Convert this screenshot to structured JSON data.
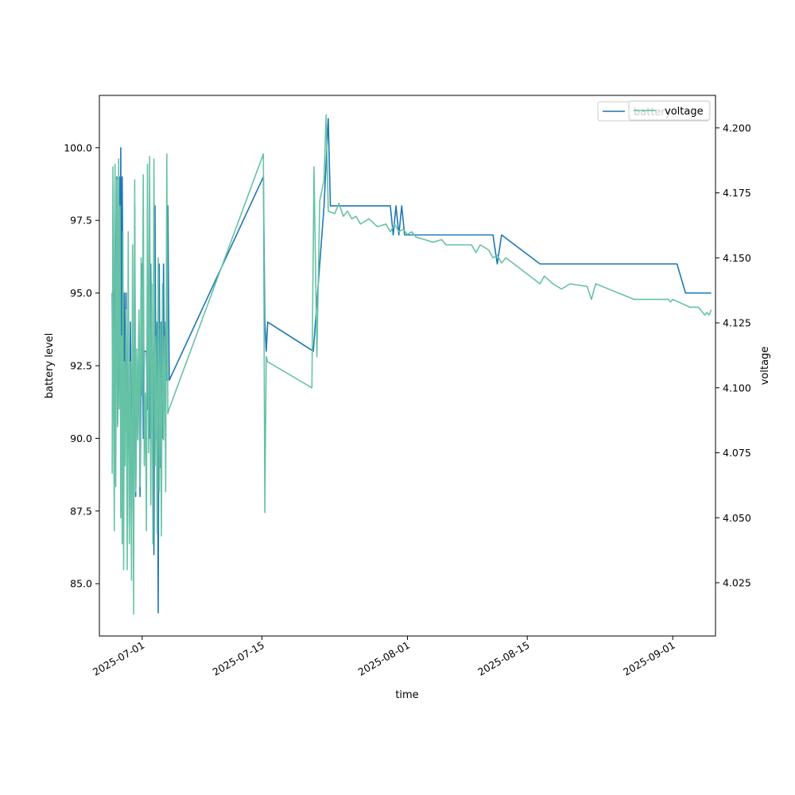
{
  "chart_data": {
    "type": "line",
    "xlabel": "time",
    "ylabel_left": "battery level",
    "ylabel_right": "voltage",
    "xlim": [
      "2025-06-26",
      "2025-09-06"
    ],
    "ylim_left": [
      83.2,
      101.8
    ],
    "ylim_right": [
      4.0045,
      4.2125
    ],
    "x_ticks": [
      "2025-07-01",
      "2025-07-15",
      "2025-08-01",
      "2025-08-15",
      "2025-09-01"
    ],
    "y_ticks_left": [
      "85.0",
      "87.5",
      "90.0",
      "92.5",
      "95.0",
      "97.5",
      "100.0"
    ],
    "y_ticks_right": [
      "4.025",
      "4.050",
      "4.075",
      "4.100",
      "4.125",
      "4.150",
      "4.175",
      "4.200"
    ],
    "grid": false,
    "legend": {
      "placement": "top-right",
      "entries": [
        "battery",
        "voltage"
      ]
    },
    "series": [
      {
        "name": "battery",
        "axis": "left",
        "color": "#1f77b4",
        "points": [
          [
            "2025-06-27 12:00",
            95.0
          ],
          [
            "2025-06-27 14:00",
            91.0
          ],
          [
            "2025-06-27 16:00",
            95.0
          ],
          [
            "2025-06-27 18:00",
            94.0
          ],
          [
            "2025-06-27 20:00",
            99.0
          ],
          [
            "2025-06-27 22:00",
            91.0
          ],
          [
            "2025-06-28 01:00",
            99.0
          ],
          [
            "2025-06-28 03:00",
            90.5
          ],
          [
            "2025-06-28 06:00",
            93.0
          ],
          [
            "2025-06-28 08:00",
            99.0
          ],
          [
            "2025-06-28 10:00",
            91.0
          ],
          [
            "2025-06-28 12:00",
            100.0
          ],
          [
            "2025-06-28 14:00",
            92.0
          ],
          [
            "2025-06-28 16:00",
            99.0
          ],
          [
            "2025-06-28 18:00",
            95.0
          ],
          [
            "2025-06-28 20:00",
            88.0
          ],
          [
            "2025-06-28 22:00",
            95.0
          ],
          [
            "2025-06-29 00:00",
            91.0
          ],
          [
            "2025-06-29 03:00",
            95.0
          ],
          [
            "2025-06-29 06:00",
            88.0
          ],
          [
            "2025-06-29 09:00",
            94.0
          ],
          [
            "2025-06-29 12:00",
            87.0
          ],
          [
            "2025-06-29 15:00",
            94.0
          ],
          [
            "2025-06-29 18:00",
            89.0
          ],
          [
            "2025-06-29 21:00",
            92.0
          ],
          [
            "2025-06-30 00:00",
            86.0
          ],
          [
            "2025-06-30 03:00",
            98.0
          ],
          [
            "2025-06-30 06:00",
            88.0
          ],
          [
            "2025-06-30 09:00",
            92.0
          ],
          [
            "2025-06-30 12:00",
            91.0
          ],
          [
            "2025-06-30 15:00",
            94.0
          ],
          [
            "2025-06-30 18:00",
            88.0
          ],
          [
            "2025-06-30 21:00",
            92.0
          ],
          [
            "2025-07-01 00:00",
            96.0
          ],
          [
            "2025-07-01 03:00",
            90.0
          ],
          [
            "2025-07-01 06:00",
            93.0
          ],
          [
            "2025-07-01 09:00",
            93.0
          ],
          [
            "2025-07-01 12:00",
            93.0
          ],
          [
            "2025-07-01 15:00",
            91.0
          ],
          [
            "2025-07-01 18:00",
            94.0
          ],
          [
            "2025-07-01 21:00",
            90.0
          ],
          [
            "2025-07-02 00:00",
            96.0
          ],
          [
            "2025-07-02 03:00",
            92.0
          ],
          [
            "2025-07-02 06:00",
            93.0
          ],
          [
            "2025-07-02 09:00",
            86.0
          ],
          [
            "2025-07-02 12:00",
            98.0
          ],
          [
            "2025-07-02 15:00",
            90.0
          ],
          [
            "2025-07-02 18:00",
            94.0
          ],
          [
            "2025-07-02 21:00",
            84.0
          ],
          [
            "2025-07-03 00:00",
            96.0
          ],
          [
            "2025-07-03 03:00",
            89.0
          ],
          [
            "2025-07-03 06:00",
            94.0
          ],
          [
            "2025-07-03 09:00",
            90.0
          ],
          [
            "2025-07-03 12:00",
            96.0
          ],
          [
            "2025-07-03 15:00",
            91.0
          ],
          [
            "2025-07-03 18:00",
            94.0
          ],
          [
            "2025-07-03 21:00",
            92.0
          ],
          [
            "2025-07-04 00:00",
            98.0
          ],
          [
            "2025-07-04 04:00",
            92.0
          ],
          [
            "2025-07-15 04:00",
            99.0
          ],
          [
            "2025-07-15 08:00",
            94.0
          ],
          [
            "2025-07-15 12:00",
            93.0
          ],
          [
            "2025-07-15 16:00",
            94.0
          ],
          [
            "2025-07-21 00:00",
            93.0
          ],
          [
            "2025-07-22 06:00",
            98.0
          ],
          [
            "2025-07-22 18:00",
            101.0
          ],
          [
            "2025-07-23 00:00",
            98.0
          ],
          [
            "2025-07-30 00:00",
            98.0
          ],
          [
            "2025-07-30 08:00",
            97.0
          ],
          [
            "2025-07-30 16:00",
            98.0
          ],
          [
            "2025-07-31 00:00",
            97.0
          ],
          [
            "2025-07-31 08:00",
            98.0
          ],
          [
            "2025-07-31 16:00",
            97.0
          ],
          [
            "2025-08-11 00:00",
            97.0
          ],
          [
            "2025-08-11 12:00",
            96.0
          ],
          [
            "2025-08-12 00:00",
            97.0
          ],
          [
            "2025-08-16 12:00",
            96.0
          ],
          [
            "2025-09-01 12:00",
            96.0
          ],
          [
            "2025-09-02 12:00",
            95.0
          ],
          [
            "2025-09-05 12:00",
            95.0
          ]
        ]
      },
      {
        "name": "voltage",
        "axis": "right",
        "color": "#66c2a5",
        "points": [
          [
            "2025-06-27 12:00",
            4.067
          ],
          [
            "2025-06-27 14:00",
            4.185
          ],
          [
            "2025-06-27 16:00",
            4.09
          ],
          [
            "2025-06-27 18:00",
            4.045
          ],
          [
            "2025-06-27 20:00",
            4.186
          ],
          [
            "2025-06-27 22:00",
            4.062
          ],
          [
            "2025-06-28 01:00",
            4.18
          ],
          [
            "2025-06-28 03:00",
            4.085
          ],
          [
            "2025-06-28 06:00",
            4.188
          ],
          [
            "2025-06-28 08:00",
            4.092
          ],
          [
            "2025-06-28 10:00",
            4.17
          ],
          [
            "2025-06-28 12:00",
            4.05
          ],
          [
            "2025-06-28 14:00",
            4.12
          ],
          [
            "2025-06-28 16:00",
            4.04
          ],
          [
            "2025-06-28 18:00",
            4.16
          ],
          [
            "2025-06-28 20:00",
            4.03
          ],
          [
            "2025-06-28 22:00",
            4.11
          ],
          [
            "2025-06-29 00:00",
            4.07
          ],
          [
            "2025-06-29 03:00",
            4.13
          ],
          [
            "2025-06-29 06:00",
            4.03
          ],
          [
            "2025-06-29 09:00",
            4.16
          ],
          [
            "2025-06-29 12:00",
            4.04
          ],
          [
            "2025-06-29 15:00",
            4.11
          ],
          [
            "2025-06-29 18:00",
            4.026
          ],
          [
            "2025-06-29 21:00",
            4.155
          ],
          [
            "2025-06-30 00:00",
            4.013
          ],
          [
            "2025-06-30 03:00",
            4.18
          ],
          [
            "2025-06-30 06:00",
            4.06
          ],
          [
            "2025-06-30 09:00",
            4.115
          ],
          [
            "2025-06-30 12:00",
            4.08
          ],
          [
            "2025-06-30 15:00",
            4.13
          ],
          [
            "2025-06-30 18:00",
            4.062
          ],
          [
            "2025-06-30 21:00",
            4.15
          ],
          [
            "2025-07-01 00:00",
            4.097
          ],
          [
            "2025-07-01 03:00",
            4.182
          ],
          [
            "2025-07-01 06:00",
            4.07
          ],
          [
            "2025-07-01 09:00",
            4.098
          ],
          [
            "2025-07-01 12:00",
            4.045
          ],
          [
            "2025-07-01 15:00",
            4.186
          ],
          [
            "2025-07-01 18:00",
            4.075
          ],
          [
            "2025-07-01 21:00",
            4.189
          ],
          [
            "2025-07-02 00:00",
            4.055
          ],
          [
            "2025-07-02 03:00",
            4.14
          ],
          [
            "2025-07-02 06:00",
            4.04
          ],
          [
            "2025-07-02 09:00",
            4.188
          ],
          [
            "2025-07-02 12:00",
            4.07
          ],
          [
            "2025-07-02 15:00",
            4.12
          ],
          [
            "2025-07-02 18:00",
            4.044
          ],
          [
            "2025-07-02 21:00",
            4.15
          ],
          [
            "2025-07-03 00:00",
            4.06
          ],
          [
            "2025-07-03 03:00",
            4.125
          ],
          [
            "2025-07-03 06:00",
            4.043
          ],
          [
            "2025-07-03 09:00",
            4.14
          ],
          [
            "2025-07-03 12:00",
            4.08
          ],
          [
            "2025-07-03 15:00",
            4.12
          ],
          [
            "2025-07-03 18:00",
            4.06
          ],
          [
            "2025-07-03 21:00",
            4.19
          ],
          [
            "2025-07-04 00:00",
            4.09
          ],
          [
            "2025-07-04 04:00",
            4.092
          ],
          [
            "2025-07-15 04:00",
            4.19
          ],
          [
            "2025-07-15 08:00",
            4.052
          ],
          [
            "2025-07-15 12:00",
            4.112
          ],
          [
            "2025-07-15 16:00",
            4.11
          ],
          [
            "2025-07-20 20:00",
            4.1
          ],
          [
            "2025-07-21 02:00",
            4.185
          ],
          [
            "2025-07-21 10:00",
            4.112
          ],
          [
            "2025-07-21 18:00",
            4.172
          ],
          [
            "2025-07-22 06:00",
            4.18
          ],
          [
            "2025-07-22 12:00",
            4.205
          ],
          [
            "2025-07-22 18:00",
            4.168
          ],
          [
            "2025-07-23 12:00",
            4.167
          ],
          [
            "2025-07-24 00:00",
            4.171
          ],
          [
            "2025-07-24 12:00",
            4.166
          ],
          [
            "2025-07-25 00:00",
            4.168
          ],
          [
            "2025-07-25 12:00",
            4.165
          ],
          [
            "2025-07-26 00:00",
            4.166
          ],
          [
            "2025-07-26 12:00",
            4.163
          ],
          [
            "2025-07-27 12:00",
            4.165
          ],
          [
            "2025-07-28 12:00",
            4.162
          ],
          [
            "2025-07-29 12:00",
            4.163
          ],
          [
            "2025-07-30 00:00",
            4.16
          ],
          [
            "2025-07-30 12:00",
            4.163
          ],
          [
            "2025-07-31 00:00",
            4.16
          ],
          [
            "2025-07-31 12:00",
            4.161
          ],
          [
            "2025-08-01 00:00",
            4.159
          ],
          [
            "2025-08-01 12:00",
            4.16
          ],
          [
            "2025-08-02 00:00",
            4.158
          ],
          [
            "2025-08-03 00:00",
            4.157
          ],
          [
            "2025-08-04 00:00",
            4.156
          ],
          [
            "2025-08-05 00:00",
            4.157
          ],
          [
            "2025-08-05 12:00",
            4.155
          ],
          [
            "2025-08-06 12:00",
            4.155
          ],
          [
            "2025-08-07 12:00",
            4.155
          ],
          [
            "2025-08-08 12:00",
            4.155
          ],
          [
            "2025-08-09 00:00",
            4.152
          ],
          [
            "2025-08-09 12:00",
            4.155
          ],
          [
            "2025-08-10 12:00",
            4.153
          ],
          [
            "2025-08-11 00:00",
            4.15
          ],
          [
            "2025-08-11 12:00",
            4.151
          ],
          [
            "2025-08-12 00:00",
            4.148
          ],
          [
            "2025-08-12 12:00",
            4.15
          ],
          [
            "2025-08-16 12:00",
            4.14
          ],
          [
            "2025-08-17 00:00",
            4.143
          ],
          [
            "2025-08-18 00:00",
            4.14
          ],
          [
            "2025-08-19 00:00",
            4.138
          ],
          [
            "2025-08-20 00:00",
            4.14
          ],
          [
            "2025-08-22 00:00",
            4.139
          ],
          [
            "2025-08-22 12:00",
            4.134
          ],
          [
            "2025-08-23 00:00",
            4.14
          ],
          [
            "2025-08-27 12:00",
            4.134
          ],
          [
            "2025-08-31 12:00",
            4.134
          ],
          [
            "2025-08-31 18:00",
            4.133
          ],
          [
            "2025-09-01 00:00",
            4.134
          ],
          [
            "2025-09-03 00:00",
            4.131
          ],
          [
            "2025-09-04 00:00",
            4.131
          ],
          [
            "2025-09-04 18:00",
            4.128
          ],
          [
            "2025-09-05 00:00",
            4.129
          ],
          [
            "2025-09-05 06:00",
            4.128
          ],
          [
            "2025-09-05 12:00",
            4.13
          ]
        ]
      }
    ]
  }
}
